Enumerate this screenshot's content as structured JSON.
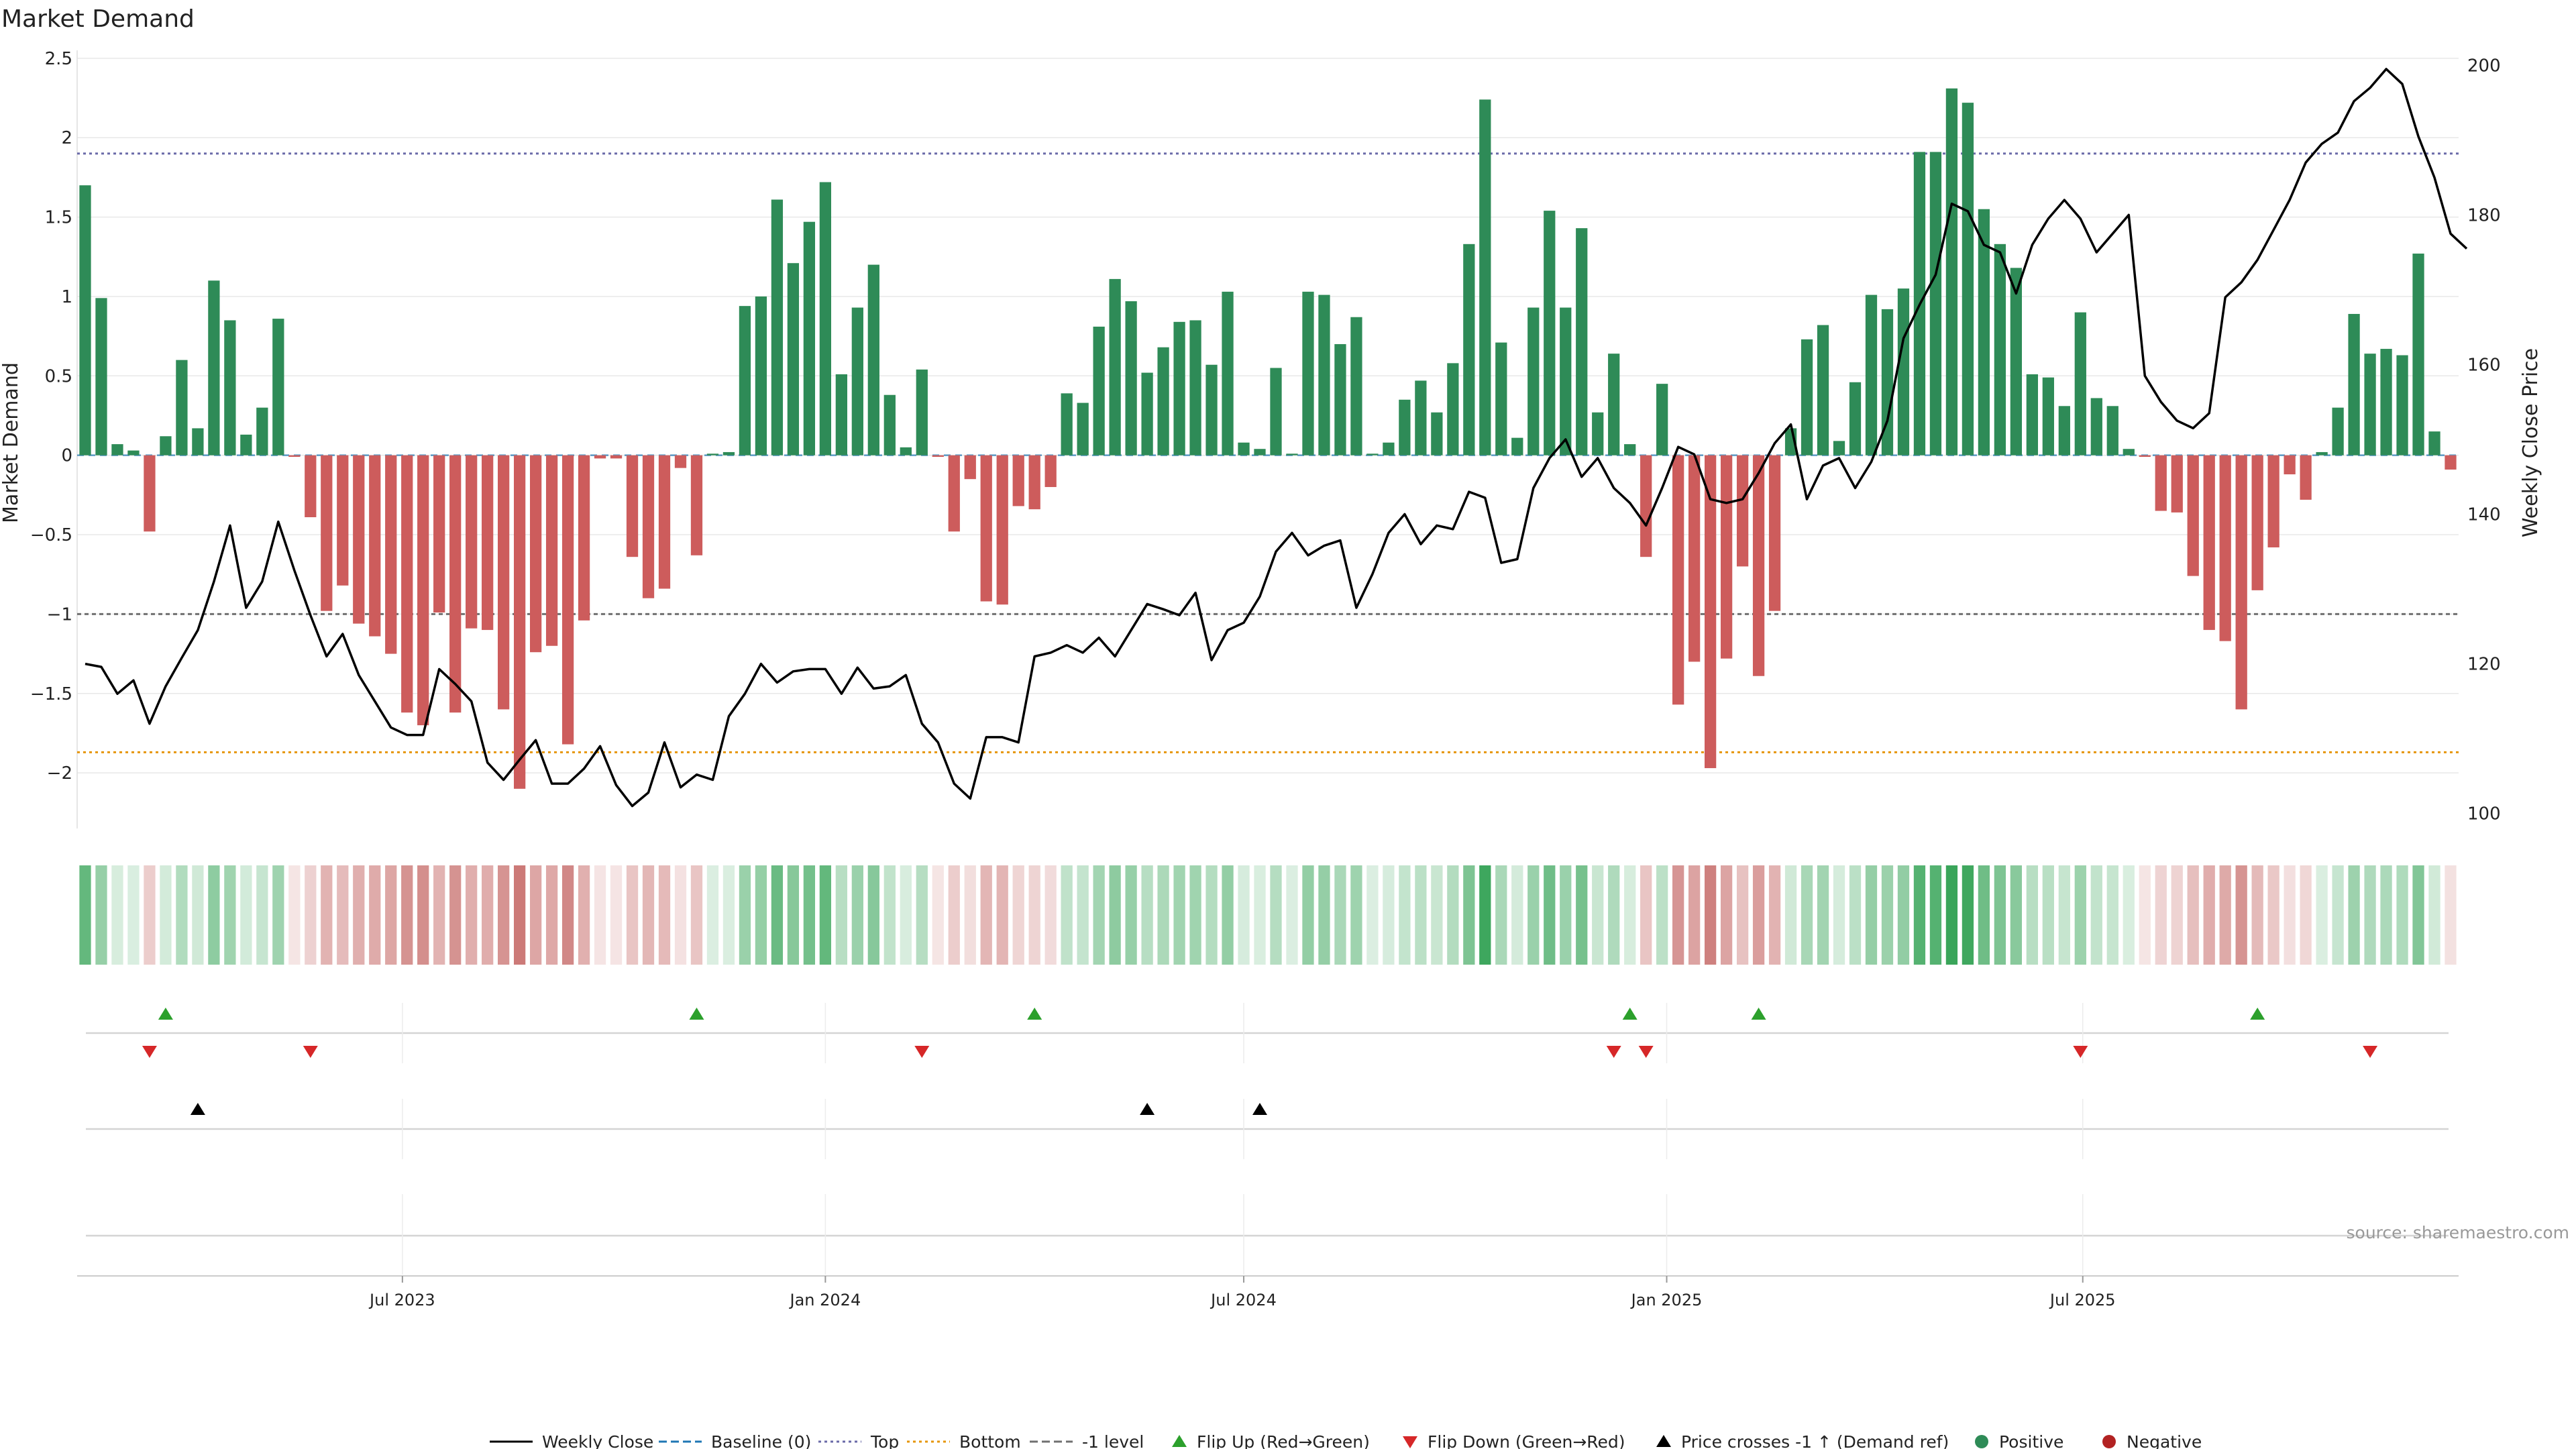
{
  "title": "Market Demand",
  "source": "source: sharemaestro.com",
  "colors": {
    "positive": "#2e8b57",
    "negative": "#cd5c5c",
    "price": "#000000",
    "baseline": "#1f77b4",
    "top": "#6a6aa8",
    "bottom": "#e6960a",
    "minus1": "#707070",
    "flip_up": "#2ca02c",
    "flip_down": "#d62728",
    "grid": "#e8e8e8"
  },
  "chart_data": {
    "type": "bar",
    "title": "Market Demand",
    "ylabel": "Market Demand",
    "y2label": "Weekly Close Price",
    "ylim": [
      -2.35,
      2.55
    ],
    "y2lim": [
      98,
      202
    ],
    "y_ticks": [
      2.5,
      2,
      1.5,
      1,
      0.5,
      0,
      -0.5,
      -1,
      -1.5,
      -2
    ],
    "y_tick_labels": [
      "2.5",
      "2",
      "1.5",
      "1",
      "0.5",
      "0",
      "−0.5",
      "−1",
      "−1.5",
      "−2"
    ],
    "y2_ticks": [
      200,
      180,
      160,
      140,
      120,
      100
    ],
    "y2_tick_labels": [
      "200",
      "180",
      "160",
      "140",
      "120",
      "100"
    ],
    "x_start": "2023-02-13",
    "x_tick_labels": [
      "Jul 2023",
      "Jan 2024",
      "Jul 2024",
      "Jan 2025",
      "Jul 2025"
    ],
    "x_tick_dates": [
      "2023-07-01",
      "2024-01-01",
      "2024-07-01",
      "2025-01-01",
      "2025-07-01"
    ],
    "grid": true,
    "legend_position": "bottom",
    "reference_lines": {
      "baseline": 0,
      "top": 1.9,
      "bottom": -1.87,
      "minus1": -1.0
    },
    "demand": [
      1.7,
      0.99,
      0.07,
      0.03,
      -0.48,
      0.12,
      0.6,
      0.17,
      1.1,
      0.85,
      0.13,
      0.3,
      0.86,
      -0.01,
      -0.39,
      -0.98,
      -0.82,
      -1.06,
      -1.14,
      -1.25,
      -1.62,
      -1.7,
      -0.99,
      -1.62,
      -1.09,
      -1.1,
      -1.6,
      -2.1,
      -1.24,
      -1.2,
      -1.82,
      -1.04,
      -0.02,
      -0.02,
      -0.64,
      -0.9,
      -0.84,
      -0.08,
      -0.63,
      0.01,
      0.02,
      0.94,
      1.0,
      1.61,
      1.21,
      1.47,
      1.72,
      0.51,
      0.93,
      1.2,
      0.38,
      0.05,
      0.54,
      -0.01,
      -0.48,
      -0.15,
      -0.92,
      -0.94,
      -0.32,
      -0.34,
      -0.2,
      0.39,
      0.33,
      0.81,
      1.11,
      0.97,
      0.52,
      0.68,
      0.84,
      0.85,
      0.57,
      1.03,
      0.08,
      0.04,
      0.55,
      0.01,
      1.03,
      1.01,
      0.7,
      0.87,
      0.01,
      0.08,
      0.35,
      0.47,
      0.27,
      0.58,
      1.33,
      2.24,
      0.71,
      0.11,
      0.93,
      1.54,
      0.93,
      1.43,
      0.27,
      0.64,
      0.07,
      -0.64,
      0.45,
      -1.57,
      -1.3,
      -1.97,
      -1.28,
      -0.7,
      -1.39,
      -0.98,
      0.17,
      0.73,
      0.82,
      0.09,
      0.46,
      1.01,
      0.92,
      1.05,
      1.91,
      1.91,
      2.31,
      2.22,
      1.55,
      1.33,
      1.18,
      0.51,
      0.49,
      0.31,
      0.9,
      0.36,
      0.31,
      0.04,
      -0.01,
      -0.35,
      -0.36,
      -0.76,
      -1.1,
      -1.17,
      -1.6,
      -0.85,
      -0.58,
      -0.12,
      -0.28,
      0.02,
      0.3,
      0.89,
      0.64,
      0.67,
      0.63,
      1.27,
      0.15,
      -0.09
    ],
    "price": [
      120,
      119.6,
      116,
      117.8,
      112,
      117,
      120.8,
      124.5,
      131,
      138.5,
      127.5,
      131,
      139,
      132.5,
      126.5,
      121,
      124,
      118.5,
      115,
      111.5,
      110.5,
      110.5,
      119.3,
      117.3,
      115,
      106.8,
      104.5,
      107.2,
      109.8,
      104,
      104,
      106,
      109,
      103.8,
      101,
      102.8,
      109.5,
      103.5,
      105.2,
      104.5,
      113,
      116,
      120,
      117.5,
      119,
      119.3,
      119.3,
      116,
      119.5,
      116.7,
      117,
      118.5,
      112,
      109.5,
      104,
      102,
      110.2,
      110.2,
      109.5,
      121,
      121.5,
      122.5,
      121.5,
      123.5,
      121,
      124.5,
      128,
      127.3,
      126.5,
      129.5,
      120.5,
      124.5,
      125.5,
      129,
      135,
      137.5,
      134.5,
      135.8,
      136.5,
      127.5,
      132,
      137.5,
      140,
      136,
      138.5,
      138,
      143,
      142.2,
      133.5,
      134,
      143.5,
      147.5,
      150,
      145,
      147.5,
      143.5,
      141.5,
      138.5,
      143.5,
      149,
      148,
      142,
      141.5,
      142,
      145.5,
      149.5,
      152,
      142,
      146.5,
      147.5,
      143.5,
      147,
      152.5,
      163.5,
      168,
      172,
      181.5,
      180.5,
      176,
      175,
      169.5,
      176,
      179.5,
      182,
      179.5,
      175,
      177.5,
      180,
      158.5,
      155,
      152.5,
      151.5,
      153.5,
      169,
      171,
      174,
      178,
      182,
      187,
      189.5,
      191,
      195.2,
      197,
      199.5,
      197.5,
      190.5,
      185,
      177.5,
      175.5
    ],
    "flip_up": [
      5,
      38,
      59,
      96,
      104,
      135
    ],
    "flip_down": [
      4,
      14,
      52,
      95,
      97,
      124,
      142
    ],
    "price_cross": [
      7,
      66,
      73
    ]
  },
  "legend": [
    {
      "label": "Weekly Close",
      "kind": "line",
      "color": "#000000"
    },
    {
      "label": "Baseline (0)",
      "kind": "dashed",
      "color": "#1f77b4"
    },
    {
      "label": "Top",
      "kind": "dotted",
      "color": "#6a6aa8"
    },
    {
      "label": "Bottom",
      "kind": "dotted",
      "color": "#e6960a"
    },
    {
      "label": "-1 level",
      "kind": "dashed",
      "color": "#707070"
    },
    {
      "label": "Flip Up (Red→Green)",
      "kind": "tri-up",
      "color": "#2ca02c"
    },
    {
      "label": "Flip Down (Green→Red)",
      "kind": "tri-down",
      "color": "#d62728"
    },
    {
      "label": "Price crosses -1 ↑ (Demand ref)",
      "kind": "tri-up",
      "color": "#000000"
    },
    {
      "label": "Positive",
      "kind": "dot",
      "color": "#2e8b57"
    },
    {
      "label": "Negative",
      "kind": "dot",
      "color": "#b22222"
    }
  ]
}
